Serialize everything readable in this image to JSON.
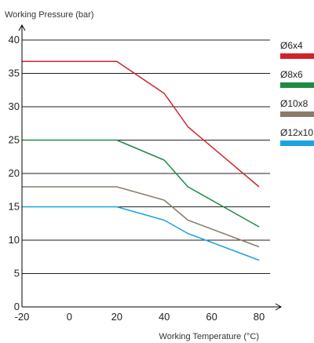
{
  "chart_data": {
    "type": "line",
    "title": "",
    "xlabel": "Working Temperature (°C)",
    "ylabel": "Working Pressure (bar)",
    "xlim": [
      -20,
      80
    ],
    "ylim": [
      0,
      40
    ],
    "x_ticks": [
      "-20",
      "0",
      "20",
      "40",
      "60",
      "80"
    ],
    "y_ticks": [
      "0",
      "5",
      "10",
      "15",
      "20",
      "25",
      "30",
      "35",
      "40"
    ],
    "grid": "horizontal",
    "legend_position": "right",
    "series": [
      {
        "name": "Ø6x4",
        "color": "#d2232a",
        "x": [
          -20,
          20,
          40,
          50,
          80
        ],
        "y": [
          36.8,
          36.8,
          32,
          27,
          18
        ]
      },
      {
        "name": "Ø8x6",
        "color": "#1f8a45",
        "x": [
          -20,
          20,
          40,
          50,
          80
        ],
        "y": [
          25,
          25,
          22,
          18,
          12
        ]
      },
      {
        "name": "Ø10x8",
        "color": "#8c7b6b",
        "x": [
          -20,
          20,
          40,
          50,
          80
        ],
        "y": [
          18,
          18,
          16,
          13,
          9
        ]
      },
      {
        "name": "Ø12x10",
        "color": "#1aa3e0",
        "x": [
          -20,
          20,
          40,
          50,
          80
        ],
        "y": [
          15,
          15,
          13,
          11,
          7
        ]
      }
    ]
  }
}
